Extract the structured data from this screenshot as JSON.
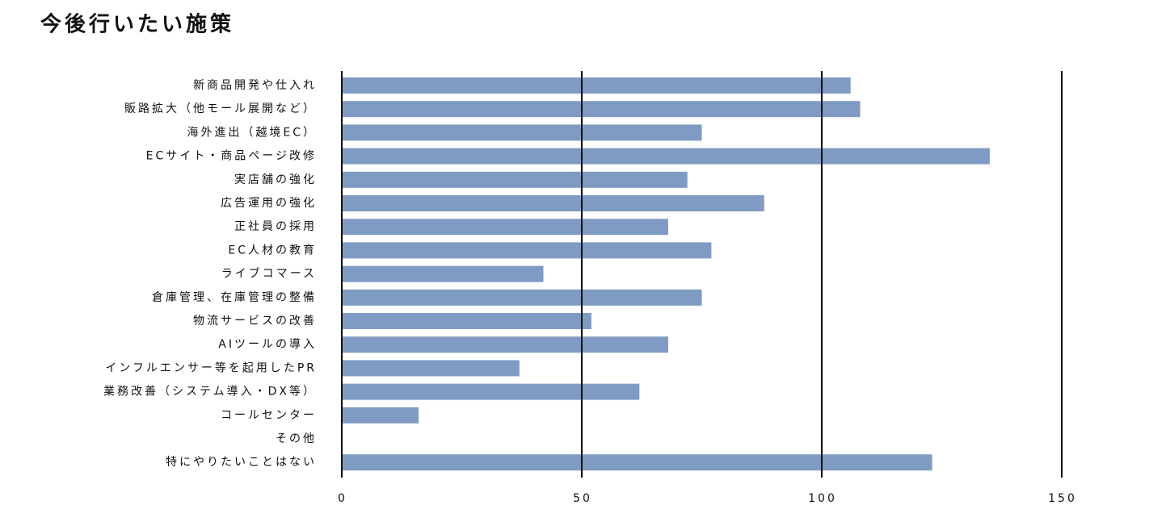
{
  "chart_data": {
    "type": "hbar",
    "title": "今後行いたい施策",
    "categories": [
      "新商品開発や仕入れ",
      "販路拡大（他モール展開など）",
      "海外進出（越境EC）",
      "ECサイト・商品ページ改修",
      "実店舗の強化",
      "広告運用の強化",
      "正社員の採用",
      "EC人材の教育",
      "ライブコマース",
      "倉庫管理、在庫管理の整備",
      "物流サービスの改善",
      "AIツールの導入",
      "インフルエンサー等を起用したPR",
      "業務改善（システム導入・DX等）",
      "コールセンター",
      "その他",
      "特にやりたいことはない"
    ],
    "values": [
      106,
      108,
      75,
      135,
      72,
      88,
      68,
      77,
      42,
      75,
      52,
      68,
      37,
      62,
      16,
      0,
      123
    ],
    "color": "#7f9bc4",
    "xlim": [
      0,
      150
    ],
    "xticks": [
      0,
      50,
      100,
      150
    ],
    "grid": true
  }
}
